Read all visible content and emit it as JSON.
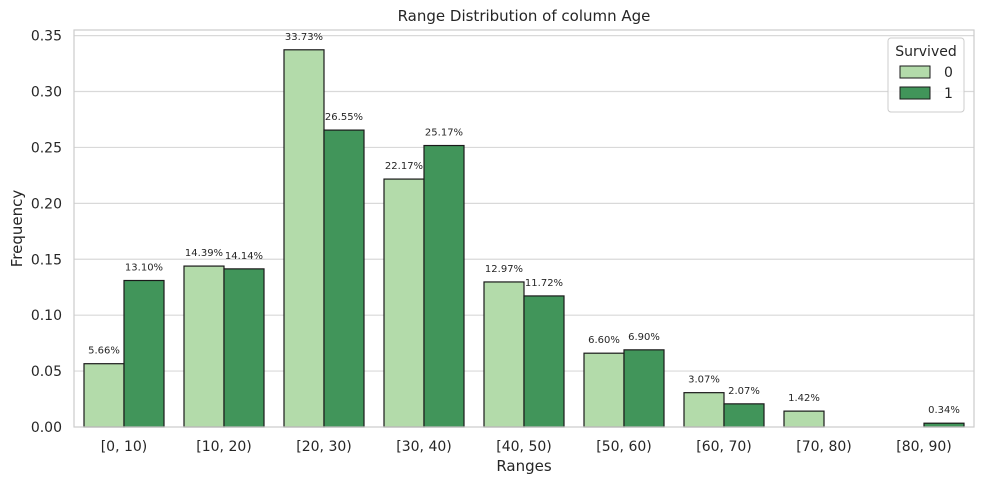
{
  "chart_data": {
    "type": "bar",
    "title": "Range Distribution of column Age",
    "xlabel": "Ranges",
    "ylabel": "Frequency",
    "categories": [
      "[0, 10)",
      "[10, 20)",
      "[20, 30)",
      "[30, 40)",
      "[40, 50)",
      "[50, 60)",
      "[60, 70)",
      "[70, 80)",
      "[80, 90)"
    ],
    "ylim": [
      0,
      0.355
    ],
    "yticks": [
      "0.00",
      "0.05",
      "0.10",
      "0.15",
      "0.20",
      "0.25",
      "0.30",
      "0.35"
    ],
    "grid": true,
    "legend": {
      "title": "Survived",
      "position": "top-right"
    },
    "series": [
      {
        "name": "0",
        "color": "#b3dbaa",
        "values": [
          0.0566,
          0.1439,
          0.3373,
          0.2217,
          0.1297,
          0.066,
          0.0307,
          0.0142,
          0.0
        ],
        "labels": [
          "5.66%",
          "14.39%",
          "33.73%",
          "22.17%",
          "12.97%",
          "6.60%",
          "3.07%",
          "1.42%",
          null
        ]
      },
      {
        "name": "1",
        "color": "#41955a",
        "values": [
          0.131,
          0.1414,
          0.2655,
          0.2517,
          0.1172,
          0.069,
          0.0207,
          0.0,
          0.0034
        ],
        "labels": [
          "13.10%",
          "14.14%",
          "26.55%",
          "25.17%",
          "11.72%",
          "6.90%",
          "2.07%",
          null,
          "0.34%"
        ]
      }
    ]
  }
}
